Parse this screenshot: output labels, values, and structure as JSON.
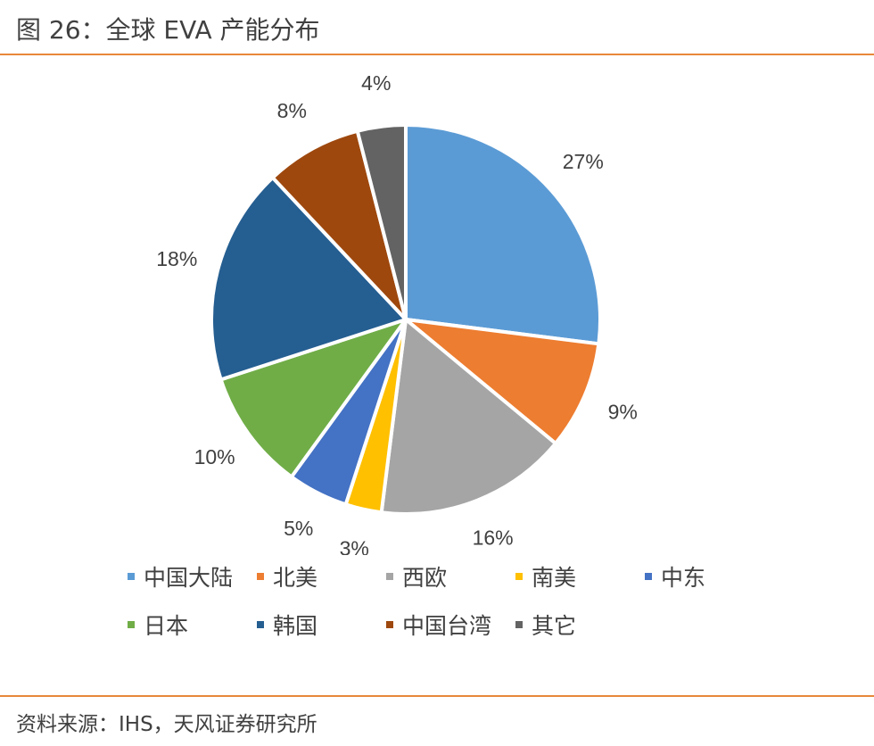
{
  "title": "图 26：全球 EVA 产能分布",
  "source": "资料来源：IHS，天风证券研究所",
  "chart_data": {
    "type": "pie",
    "slices": [
      {
        "label": "中国大陆",
        "value": 27,
        "display": "27%",
        "color": "#5b9bd5"
      },
      {
        "label": "北美",
        "value": 9,
        "display": "9%",
        "color": "#ed7d31"
      },
      {
        "label": "西欧",
        "value": 16,
        "display": "16%",
        "color": "#a5a5a5"
      },
      {
        "label": "南美",
        "value": 3,
        "display": "3%",
        "color": "#ffc000"
      },
      {
        "label": "中东",
        "value": 5,
        "display": "5%",
        "color": "#4472c4"
      },
      {
        "label": "日本",
        "value": 10,
        "display": "10%",
        "color": "#70ad47"
      },
      {
        "label": "韩国",
        "value": 18,
        "display": "18%",
        "color": "#255e91"
      },
      {
        "label": "中国台湾",
        "value": 8,
        "display": "8%",
        "color": "#9e480e"
      },
      {
        "label": "其它",
        "value": 4,
        "display": "4%",
        "color": "#636363"
      }
    ],
    "legend_position": "bottom"
  }
}
